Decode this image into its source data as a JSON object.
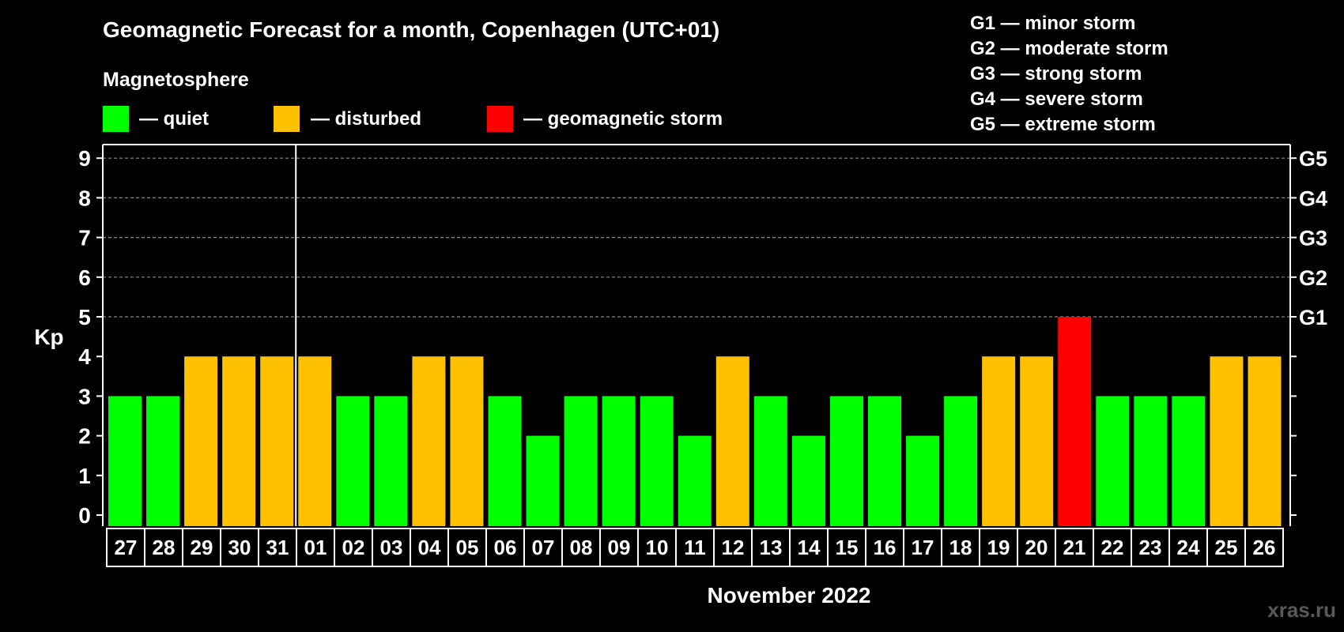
{
  "colors": {
    "background": "#000000",
    "quiet": "#00ff00",
    "disturbed": "#ffc000",
    "storm": "#ff0000",
    "grid": "#8a8a8a",
    "text": "#ffffff"
  },
  "header": {
    "title": "Geomagnetic Forecast for a month, Copenhagen (UTC+01)",
    "section": "Magnetosphere",
    "legend": [
      {
        "label": "— quiet",
        "color": "#00ff00"
      },
      {
        "label": "— disturbed",
        "color": "#ffc000"
      },
      {
        "label": "— geomagnetic storm",
        "color": "#ff0000"
      }
    ]
  },
  "storm_scale": [
    "G1 — minor storm",
    "G2 — moderate storm",
    "G3 — strong storm",
    "G4 — severe storm",
    "G5 — extreme storm"
  ],
  "watermark": "xras.ru",
  "chart_data": {
    "type": "bar",
    "title": "Geomagnetic Forecast for a month, Copenhagen (UTC+01)",
    "xlabel": "November 2022",
    "ylabel": "Kp",
    "ylim": [
      0,
      9
    ],
    "yticks": [
      0,
      1,
      2,
      3,
      4,
      5,
      6,
      7,
      8,
      9
    ],
    "right_axis": [
      {
        "kp": 5,
        "label": "G1"
      },
      {
        "kp": 6,
        "label": "G2"
      },
      {
        "kp": 7,
        "label": "G3"
      },
      {
        "kp": 8,
        "label": "G4"
      },
      {
        "kp": 9,
        "label": "G5"
      }
    ],
    "month_boundary_after": "31",
    "categories": [
      "27",
      "28",
      "29",
      "30",
      "31",
      "01",
      "02",
      "03",
      "04",
      "05",
      "06",
      "07",
      "08",
      "09",
      "10",
      "11",
      "12",
      "13",
      "14",
      "15",
      "16",
      "17",
      "18",
      "19",
      "20",
      "21",
      "22",
      "23",
      "24",
      "25",
      "26"
    ],
    "values": [
      3,
      3,
      4,
      4,
      4,
      4,
      3,
      3,
      4,
      4,
      3,
      2,
      3,
      3,
      3,
      2,
      4,
      3,
      2,
      3,
      3,
      2,
      3,
      4,
      4,
      5,
      3,
      3,
      3,
      4,
      4
    ],
    "status": [
      "quiet",
      "quiet",
      "disturbed",
      "disturbed",
      "disturbed",
      "disturbed",
      "quiet",
      "quiet",
      "disturbed",
      "disturbed",
      "quiet",
      "quiet",
      "quiet",
      "quiet",
      "quiet",
      "quiet",
      "disturbed",
      "quiet",
      "quiet",
      "quiet",
      "quiet",
      "quiet",
      "quiet",
      "disturbed",
      "disturbed",
      "storm",
      "quiet",
      "quiet",
      "quiet",
      "disturbed",
      "disturbed"
    ]
  }
}
